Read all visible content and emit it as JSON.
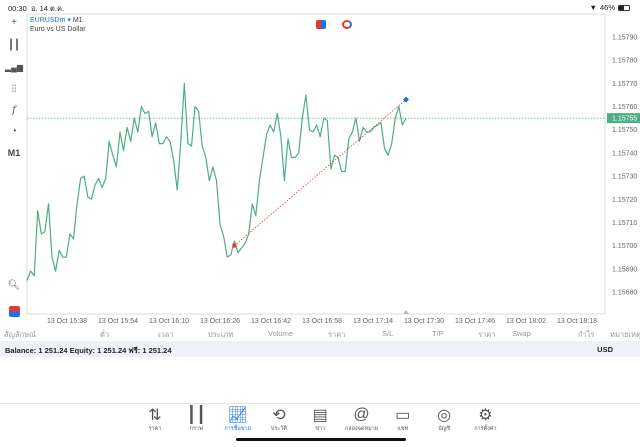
{
  "status": {
    "time": "00:30",
    "date": "อ. 14 ต.ค.",
    "battery": "46%",
    "battery_level": 0.46
  },
  "symbol": {
    "name": "EURUSDm",
    "timeframe": "M1",
    "description": "Euro vs US Dollar"
  },
  "toolbar": {
    "timeframe_label": "M1"
  },
  "colors": {
    "line": "#4cae84",
    "accent": "#1a73e8",
    "entry": "#e53935",
    "exit": "#1a73e8",
    "current_price_bg": "#4cae84"
  },
  "chart_data": {
    "type": "line",
    "ylim": [
      1.15675,
      1.15795
    ],
    "y_ticks": [
      "1.15790",
      "1.15780",
      "1.15770",
      "1.15760",
      "1.15750",
      "1.15740",
      "1.15730",
      "1.15720",
      "1.15710",
      "1.15700",
      "1.15690",
      "1.15680"
    ],
    "x_ticks": [
      "13 Oct 15:38",
      "13 Oct 15:54",
      "13 Oct 16:10",
      "13 Oct 16:26",
      "13 Oct 16:42",
      "13 Oct 16:58",
      "13 Oct 17:14",
      "13 Oct 17:30",
      "13 Oct 17:46",
      "13 Oct 18:02",
      "13 Oct 18:18"
    ],
    "current_price": "1.15755",
    "values": [
      1.15685,
      1.15689,
      1.15687,
      1.15715,
      1.15705,
      1.15706,
      1.15718,
      1.15695,
      1.15689,
      1.15698,
      1.15695,
      1.15695,
      1.15705,
      1.15703,
      1.15718,
      1.15729,
      1.1573,
      1.15721,
      1.1572,
      1.15726,
      1.15729,
      1.15725,
      1.15729,
      1.15745,
      1.15739,
      1.15734,
      1.15749,
      1.15741,
      1.15751,
      1.15745,
      1.15755,
      1.15749,
      1.1576,
      1.15757,
      1.15758,
      1.15747,
      1.15753,
      1.15744,
      1.15744,
      1.15747,
      1.15745,
      1.15737,
      1.15724,
      1.15744,
      1.1577,
      1.15744,
      1.15743,
      1.1576,
      1.15758,
      1.15743,
      1.15738,
      1.15728,
      1.15734,
      1.15728,
      1.15709,
      1.15704,
      1.15695,
      1.15696,
      1.15702,
      1.15697,
      1.15699,
      1.15701,
      1.15705,
      1.15718,
      1.15713,
      1.15728,
      1.15738,
      1.15748,
      1.15752,
      1.15749,
      1.15757,
      1.15747,
      1.15728,
      1.15746,
      1.15738,
      1.15738,
      1.1574,
      1.15755,
      1.15765,
      1.1575,
      1.15749,
      1.15752,
      1.15747,
      1.15755,
      1.15754,
      1.15733,
      1.15739,
      1.15738,
      1.15732,
      1.15732,
      1.15746,
      1.15749,
      1.15755,
      1.15745,
      1.15751,
      1.15749,
      1.15749,
      1.15751,
      1.15752,
      1.15753,
      1.15742,
      1.15739,
      1.15744,
      1.15755,
      1.1576,
      1.15752,
      1.15755
    ],
    "trade": {
      "entry_index": 58,
      "entry_price": 1.157,
      "exit_index": 106,
      "exit_price": 1.15763
    }
  },
  "table": {
    "headers": [
      "สัญลักษณ์",
      "ตั๋ว",
      "เวลา",
      "ประเภท",
      "Volume",
      "ราคา",
      "S/L",
      "T/P",
      "ราคา",
      "Swap",
      "กำไร",
      "หมายเหตุ"
    ]
  },
  "balance": {
    "text": "Balance: 1 251.24 Equity: 1 251.24 ฟรี: 1 251.24",
    "currency": "USD"
  },
  "nav": [
    {
      "label": "ราคา"
    },
    {
      "label": "กราฟ"
    },
    {
      "label": "การซื้อขาย"
    },
    {
      "label": "ประวัติ"
    },
    {
      "label": "ข่าว"
    },
    {
      "label": "กล่องจดหมาย"
    },
    {
      "label": "แชท"
    },
    {
      "label": "บัญชี"
    },
    {
      "label": "การตั้งค่า"
    }
  ]
}
